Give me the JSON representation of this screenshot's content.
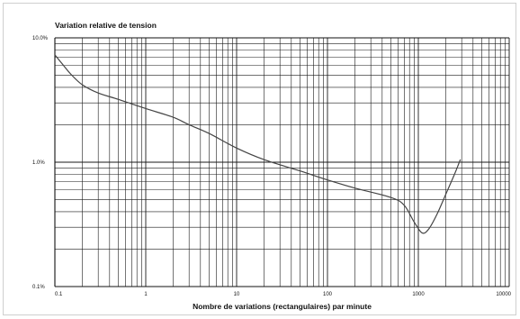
{
  "chart_data": {
    "type": "line",
    "title": "Variation relative de tension",
    "xlabel": "Nombre de variations (rectangulaires) par minute",
    "ylabel": "",
    "x_scale": "log",
    "y_scale": "log",
    "xlim": [
      0.1,
      10000
    ],
    "ylim": [
      0.1,
      10.0
    ],
    "x_ticks": [
      {
        "value": 0.1,
        "label": "0.1"
      },
      {
        "value": 1,
        "label": "1"
      },
      {
        "value": 10,
        "label": "10"
      },
      {
        "value": 100,
        "label": "100"
      },
      {
        "value": 1000,
        "label": "1000"
      },
      {
        "value": 10000,
        "label": "10000"
      }
    ],
    "y_ticks": [
      {
        "value": 0.1,
        "label": "0.1%"
      },
      {
        "value": 1.0,
        "label": "1.0%"
      },
      {
        "value": 10.0,
        "label": "10.0%"
      }
    ],
    "grid": true,
    "legend": "none",
    "colors": {
      "grid": "#1a1a1a",
      "curve": "#444444",
      "axis": "#111111"
    },
    "series": [
      {
        "points": [
          {
            "x": 0.1,
            "y": 7.3
          },
          {
            "x": 0.12,
            "y": 6.2
          },
          {
            "x": 0.15,
            "y": 5.1
          },
          {
            "x": 0.2,
            "y": 4.2
          },
          {
            "x": 0.3,
            "y": 3.6
          },
          {
            "x": 0.5,
            "y": 3.2
          },
          {
            "x": 1,
            "y": 2.7
          },
          {
            "x": 2,
            "y": 2.3
          },
          {
            "x": 3,
            "y": 2.0
          },
          {
            "x": 5,
            "y": 1.7
          },
          {
            "x": 10,
            "y": 1.3
          },
          {
            "x": 20,
            "y": 1.05
          },
          {
            "x": 50,
            "y": 0.85
          },
          {
            "x": 100,
            "y": 0.72
          },
          {
            "x": 200,
            "y": 0.62
          },
          {
            "x": 500,
            "y": 0.52
          },
          {
            "x": 700,
            "y": 0.45
          },
          {
            "x": 900,
            "y": 0.33
          },
          {
            "x": 1100,
            "y": 0.27
          },
          {
            "x": 1300,
            "y": 0.29
          },
          {
            "x": 1600,
            "y": 0.38
          },
          {
            "x": 2000,
            "y": 0.55
          },
          {
            "x": 2500,
            "y": 0.8
          },
          {
            "x": 2900,
            "y": 1.05
          }
        ]
      }
    ]
  }
}
